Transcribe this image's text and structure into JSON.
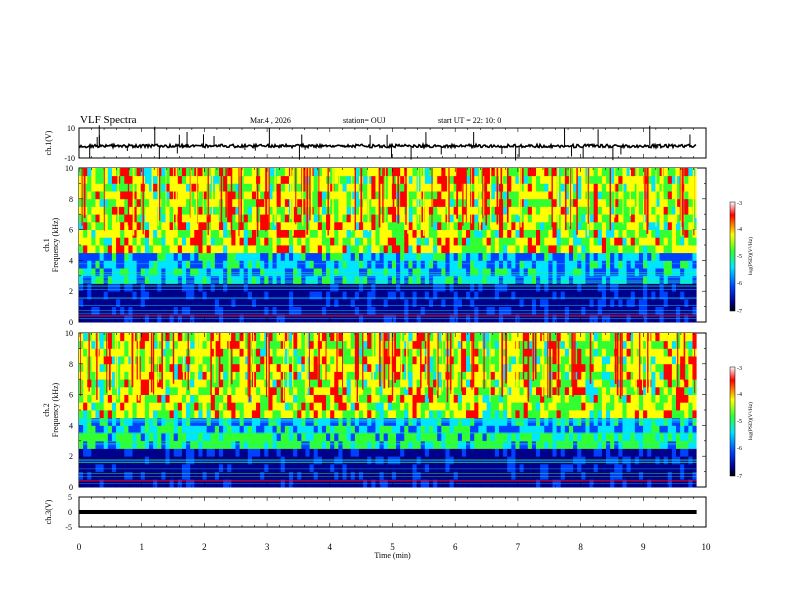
{
  "header": {
    "title": "VLF Spectra",
    "date": "Mar.4 , 2026",
    "station": "station= OUJ",
    "start": "start UT = 22: 10: 0"
  },
  "colors": {
    "low": "#00008b",
    "lowmid": "#0040ff",
    "mid": "#00e5ff",
    "midhi": "#32ff32",
    "high": "#ffff00",
    "top": "#ff0000"
  },
  "chart_data": [
    {
      "type": "line",
      "id": "ch1-waveform",
      "ylabel": "ch.1(V)",
      "ylim": [
        -10,
        10
      ],
      "yticks": [
        "10",
        "-10"
      ],
      "series": [
        {
          "name": "ch.1",
          "baseline_v": -2
        }
      ],
      "xlim": [
        0,
        10
      ]
    },
    {
      "type": "heatmap",
      "id": "ch1-spectrogram",
      "panel_label": "ch.1",
      "ylabel": "Frequency (kHz)",
      "ylim": [
        0,
        10
      ],
      "yticks": [
        "0",
        "2",
        "4",
        "6",
        "8",
        "10"
      ],
      "xlim": [
        0,
        9.85
      ],
      "colorbar": {
        "label": "log(PSD)(V²/Hz)",
        "range": [
          -7,
          -3
        ],
        "ticks": [
          "-3",
          "-4",
          "-5",
          "-6",
          "-7"
        ]
      }
    },
    {
      "type": "heatmap",
      "id": "ch2-spectrogram",
      "panel_label": "ch.2",
      "ylabel": "Frequency (kHz)",
      "ylim": [
        0,
        10
      ],
      "yticks": [
        "0",
        "2",
        "4",
        "6",
        "8",
        "10"
      ],
      "xlim": [
        0,
        9.85
      ],
      "colorbar": {
        "label": "log(PSD)(V²/Hz)",
        "range": [
          -7,
          -3
        ],
        "ticks": [
          "-3",
          "-4",
          "-5",
          "-6",
          "-7"
        ]
      }
    },
    {
      "type": "line",
      "id": "ch3-waveform",
      "ylabel": "ch.3(V)",
      "ylim": [
        -5,
        5
      ],
      "yticks": [
        "5",
        "0",
        "-5"
      ],
      "series": [
        {
          "name": "ch.3",
          "baseline_v": -1.5
        }
      ],
      "xlim": [
        0,
        10
      ]
    }
  ],
  "xaxis": {
    "label": "Time (min)",
    "range": [
      0,
      10
    ],
    "ticks": [
      "0",
      "1",
      "2",
      "3",
      "4",
      "5",
      "6",
      "7",
      "8",
      "9",
      "10"
    ]
  }
}
